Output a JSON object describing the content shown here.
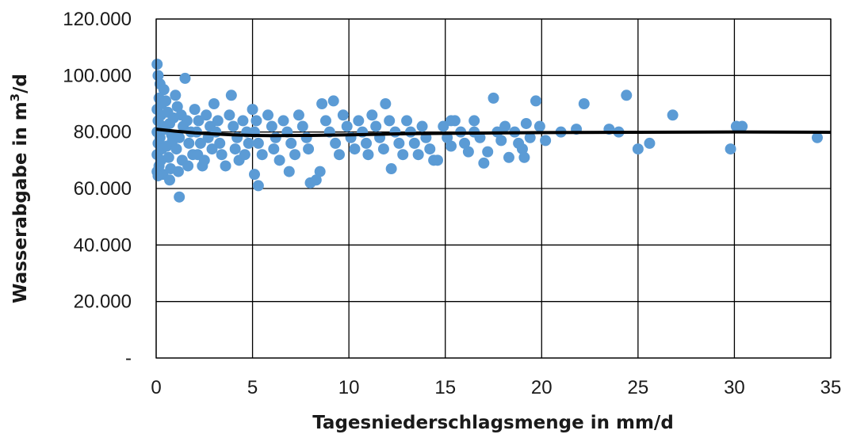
{
  "chart_data": {
    "type": "scatter",
    "title": "",
    "xlabel": "Tagesniederschlagsmenge in mm/d",
    "ylabel_main": "Wasserabgabe in m",
    "ylabel_sup": "3",
    "ylabel_tail": "/d",
    "xlim": [
      0,
      35
    ],
    "ylim": [
      0,
      120000
    ],
    "x_ticks": [
      {
        "value": 0,
        "label": "0"
      },
      {
        "value": 5,
        "label": "5"
      },
      {
        "value": 10,
        "label": "10"
      },
      {
        "value": 15,
        "label": "15"
      },
      {
        "value": 20,
        "label": "20"
      },
      {
        "value": 25,
        "label": "25"
      },
      {
        "value": 30,
        "label": "30"
      },
      {
        "value": 35,
        "label": "35"
      }
    ],
    "y_ticks": [
      {
        "value": 0,
        "label": "-"
      },
      {
        "value": 20000,
        "label": "20.000"
      },
      {
        "value": 40000,
        "label": "40.000"
      },
      {
        "value": 60000,
        "label": "60.000"
      },
      {
        "value": 80000,
        "label": "80.000"
      },
      {
        "value": 100000,
        "label": "100.000"
      },
      {
        "value": 120000,
        "label": "120.000"
      }
    ],
    "grid": true,
    "legend": "none",
    "point_color": "#5b9bd5",
    "trend_color": "#000000",
    "series": [
      {
        "kind": "points",
        "points": [
          [
            0.05,
            104000
          ],
          [
            0.1,
            100000
          ],
          [
            0.2,
            97000
          ],
          [
            0.4,
            95000
          ],
          [
            0.15,
            92000
          ],
          [
            0.3,
            90000
          ],
          [
            0.05,
            88000
          ],
          [
            0.25,
            86000
          ],
          [
            0.1,
            84000
          ],
          [
            0.35,
            82000
          ],
          [
            0.05,
            80000
          ],
          [
            0.2,
            78000
          ],
          [
            0.1,
            76000
          ],
          [
            0.3,
            74000
          ],
          [
            0.05,
            72000
          ],
          [
            0.25,
            70000
          ],
          [
            0.15,
            68000
          ],
          [
            0.05,
            66000
          ],
          [
            0.35,
            65000
          ],
          [
            0.1,
            64500
          ],
          [
            0.5,
            91000
          ],
          [
            0.6,
            87000
          ],
          [
            0.7,
            83000
          ],
          [
            0.8,
            79000
          ],
          [
            0.55,
            75000
          ],
          [
            0.65,
            71000
          ],
          [
            0.75,
            67000
          ],
          [
            0.9,
            85000
          ],
          [
            0.45,
            81000
          ],
          [
            0.85,
            77000
          ],
          [
            0.7,
            63000
          ],
          [
            1.2,
            57000
          ],
          [
            1.5,
            99000
          ],
          [
            1.0,
            93000
          ],
          [
            1.1,
            89000
          ],
          [
            1.3,
            86000
          ],
          [
            1.4,
            82000
          ],
          [
            1.2,
            78000
          ],
          [
            1.05,
            74000
          ],
          [
            1.35,
            70000
          ],
          [
            1.15,
            66000
          ],
          [
            1.6,
            84000
          ],
          [
            1.8,
            80000
          ],
          [
            1.7,
            76000
          ],
          [
            1.9,
            72000
          ],
          [
            1.65,
            68000
          ],
          [
            2.0,
            88000
          ],
          [
            2.2,
            84000
          ],
          [
            2.1,
            80000
          ],
          [
            2.3,
            76000
          ],
          [
            2.15,
            72000
          ],
          [
            2.4,
            68000
          ],
          [
            2.6,
            86000
          ],
          [
            2.8,
            82000
          ],
          [
            2.7,
            78000
          ],
          [
            2.9,
            74000
          ],
          [
            2.5,
            70000
          ],
          [
            3.0,
            90000
          ],
          [
            3.2,
            84000
          ],
          [
            3.1,
            80000
          ],
          [
            3.3,
            76000
          ],
          [
            3.4,
            72000
          ],
          [
            3.6,
            68000
          ],
          [
            3.9,
            93000
          ],
          [
            3.8,
            86000
          ],
          [
            4.0,
            82000
          ],
          [
            4.2,
            78000
          ],
          [
            4.1,
            74000
          ],
          [
            4.3,
            70000
          ],
          [
            4.5,
            84000
          ],
          [
            4.7,
            80000
          ],
          [
            4.8,
            76000
          ],
          [
            4.6,
            72000
          ],
          [
            5.0,
            88000
          ],
          [
            5.2,
            84000
          ],
          [
            5.1,
            80000
          ],
          [
            5.3,
            76000
          ],
          [
            5.1,
            65000
          ],
          [
            5.3,
            61000
          ],
          [
            5.5,
            72000
          ],
          [
            5.8,
            86000
          ],
          [
            6.0,
            82000
          ],
          [
            6.2,
            78000
          ],
          [
            6.1,
            74000
          ],
          [
            6.4,
            70000
          ],
          [
            6.6,
            84000
          ],
          [
            6.8,
            80000
          ],
          [
            6.9,
            66000
          ],
          [
            7.0,
            76000
          ],
          [
            7.2,
            72000
          ],
          [
            7.4,
            86000
          ],
          [
            7.6,
            82000
          ],
          [
            7.8,
            78000
          ],
          [
            7.9,
            74000
          ],
          [
            8.0,
            62000
          ],
          [
            8.3,
            63000
          ],
          [
            8.5,
            66000
          ],
          [
            8.6,
            90000
          ],
          [
            8.8,
            84000
          ],
          [
            9.0,
            80000
          ],
          [
            9.2,
            91000
          ],
          [
            9.3,
            76000
          ],
          [
            9.5,
            72000
          ],
          [
            9.7,
            86000
          ],
          [
            9.9,
            82000
          ],
          [
            10.1,
            78000
          ],
          [
            10.3,
            74000
          ],
          [
            10.5,
            84000
          ],
          [
            10.7,
            80000
          ],
          [
            10.9,
            76000
          ],
          [
            11.0,
            72000
          ],
          [
            11.2,
            86000
          ],
          [
            11.4,
            82000
          ],
          [
            11.6,
            78000
          ],
          [
            11.8,
            74000
          ],
          [
            11.9,
            90000
          ],
          [
            12.1,
            84000
          ],
          [
            12.2,
            67000
          ],
          [
            12.4,
            80000
          ],
          [
            12.6,
            76000
          ],
          [
            12.8,
            72000
          ],
          [
            13.0,
            84000
          ],
          [
            13.2,
            80000
          ],
          [
            13.4,
            76000
          ],
          [
            13.6,
            72000
          ],
          [
            13.8,
            82000
          ],
          [
            14.0,
            78000
          ],
          [
            14.2,
            74000
          ],
          [
            14.4,
            70000
          ],
          [
            14.6,
            70000
          ],
          [
            14.9,
            82000
          ],
          [
            15.1,
            78000
          ],
          [
            15.3,
            75000
          ],
          [
            15.5,
            84000
          ],
          [
            15.8,
            80000
          ],
          [
            16.0,
            76000
          ],
          [
            16.2,
            73000
          ],
          [
            16.5,
            80000
          ],
          [
            16.8,
            78000
          ],
          [
            17.0,
            69000
          ],
          [
            17.2,
            73000
          ],
          [
            17.5,
            92000
          ],
          [
            17.7,
            80000
          ],
          [
            17.9,
            77000
          ],
          [
            18.1,
            82000
          ],
          [
            18.3,
            71000
          ],
          [
            18.6,
            80000
          ],
          [
            18.8,
            76000
          ],
          [
            19.0,
            74000
          ],
          [
            19.2,
            83000
          ],
          [
            19.4,
            78000
          ],
          [
            19.7,
            91000
          ],
          [
            19.9,
            82000
          ],
          [
            20.2,
            77000
          ],
          [
            21.0,
            80000
          ],
          [
            21.8,
            81000
          ],
          [
            22.2,
            90000
          ],
          [
            23.5,
            81000
          ],
          [
            24.0,
            80000
          ],
          [
            24.4,
            93000
          ],
          [
            25.0,
            74000
          ],
          [
            25.6,
            76000
          ],
          [
            26.8,
            86000
          ],
          [
            29.8,
            74000
          ],
          [
            30.1,
            82000
          ],
          [
            30.4,
            82000
          ],
          [
            34.3,
            78000
          ],
          [
            15.3,
            84000
          ],
          [
            16.5,
            84000
          ],
          [
            19.1,
            71000
          ]
        ]
      },
      {
        "kind": "trend",
        "points": [
          [
            0,
            81000
          ],
          [
            1,
            80300
          ],
          [
            2,
            79700
          ],
          [
            3,
            79300
          ],
          [
            4,
            79000
          ],
          [
            5,
            78800
          ],
          [
            6,
            78700
          ],
          [
            8,
            78800
          ],
          [
            10,
            79000
          ],
          [
            13,
            79400
          ],
          [
            16,
            79600
          ],
          [
            20,
            79800
          ],
          [
            25,
            79900
          ],
          [
            30,
            80000
          ],
          [
            35,
            79900
          ]
        ]
      }
    ]
  }
}
